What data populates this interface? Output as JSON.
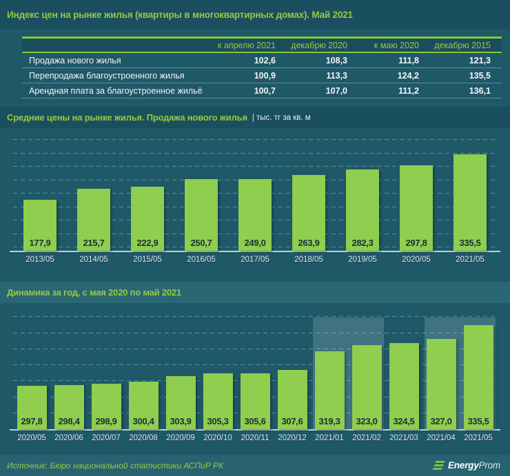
{
  "header": {
    "title": "Индекс цен на рынке жилья (квартиры в многоквартирных домах). Май 2021"
  },
  "index_table": {
    "columns": [
      "к апрелю 2021",
      "декабрю 2020",
      "к маю 2020",
      "декабрю 2015"
    ],
    "rows": [
      {
        "label": "Продажа нового жилья",
        "values": [
          "102,6",
          "108,3",
          "111,8",
          "121,3"
        ]
      },
      {
        "label": "Перепродажа благоустроенного жилья",
        "values": [
          "100,9",
          "113,3",
          "124,2",
          "135,5"
        ]
      },
      {
        "label": "Арендная плата за благоустроенное жильё",
        "values": [
          "100,7",
          "107,0",
          "111,2",
          "136,1"
        ]
      }
    ]
  },
  "sections": {
    "avg_prices": {
      "title": "Средние цены на рынке жилья.  Продажа нового жилья",
      "unit": "| тыс. тг за кв. м"
    },
    "dynamics": {
      "title": "Динамика за год, с мая 2020 по май 2021"
    }
  },
  "chart_data": [
    {
      "type": "bar",
      "title": "Средние цены на рынке жилья. Продажа нового жилья, тыс. тг за кв. м",
      "categories": [
        "2013/05",
        "2014/05",
        "2015/05",
        "2016/05",
        "2017/05",
        "2018/05",
        "2019/05",
        "2020/05",
        "2021/05"
      ],
      "values": [
        177.9,
        215.7,
        222.9,
        250.7,
        249.0,
        263.9,
        282.3,
        297.8,
        335.5
      ],
      "xlabel": "",
      "ylabel": "тыс. тг за кв. м",
      "ylim": [
        0,
        420
      ],
      "grid": true,
      "legend": "none",
      "bar_color": "#8FCE4E"
    },
    {
      "type": "bar",
      "title": "Динамика за год, с мая 2020 по май 2021",
      "categories": [
        "2020/05",
        "2020/06",
        "2020/07",
        "2020/08",
        "2020/09",
        "2020/10",
        "2020/11",
        "2020/12",
        "2021/01",
        "2021/02",
        "2021/03",
        "2021/04",
        "2021/05"
      ],
      "values": [
        297.8,
        298.4,
        298.9,
        300.4,
        303.9,
        305.3,
        305.6,
        307.6,
        319.3,
        323.0,
        324.5,
        327.0,
        335.5
      ],
      "xlabel": "",
      "ylabel": "тыс. тг за кв. м",
      "ylim": [
        270.8,
        342.8
      ],
      "grid": true,
      "legend": "none",
      "bar_color": "#8FCE4E",
      "highlight_ranges": [
        [
          8,
          9
        ],
        [
          11,
          12
        ]
      ]
    }
  ],
  "footer": {
    "source": "Источник: Бюро национальной  статистики АСПиР РК",
    "logo": {
      "bold": "Energy",
      "light": "Prom"
    }
  },
  "colors": {
    "accent_green": "#97C93F",
    "bar_green": "#8FCE4E",
    "background": "#1F5867",
    "banner": "#1A4F5F",
    "highlight": "rgba(200,224,232,0.20)"
  }
}
